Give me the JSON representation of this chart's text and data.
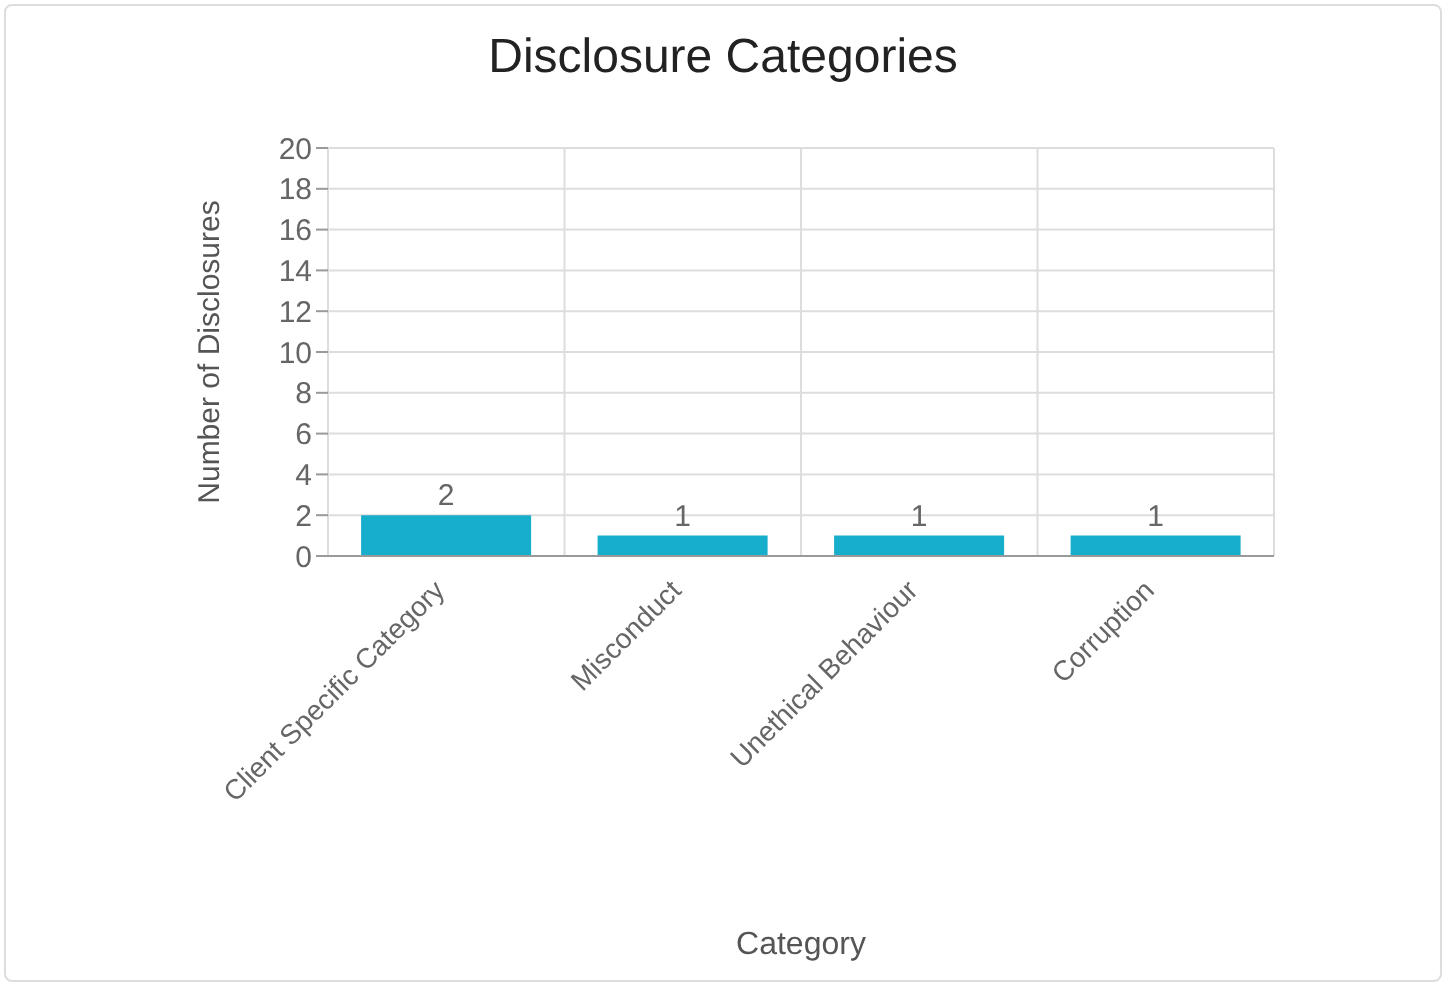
{
  "chart_data": {
    "type": "bar",
    "title": "Disclosure Categories",
    "xlabel": "Category",
    "ylabel": "Number of Disclosures",
    "categories": [
      "Client Specific Category",
      "Misconduct",
      "Unethical Behaviour",
      "Corruption"
    ],
    "values": [
      2,
      1,
      1,
      1
    ],
    "color": "#17aecb",
    "ylim": [
      0,
      20
    ],
    "yticks": [
      0,
      2,
      4,
      6,
      8,
      10,
      12,
      14,
      16,
      18,
      20
    ],
    "grid": true,
    "data_labels": true
  }
}
